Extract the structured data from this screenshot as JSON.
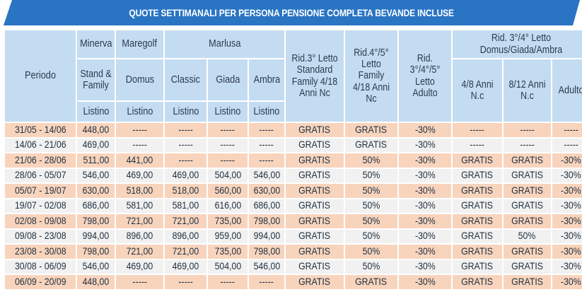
{
  "title": "QUOTE SETTIMANALI PER PERSONA PENSIONE COMPLETA BEVANDE INCLUSE",
  "header": {
    "periodo": "Periodo",
    "minerva": "Minerva",
    "maregolf": "Maregolf",
    "marlusa": "Marlusa",
    "rid3_standard": "Rid.3° Letto Standard Family 4/18 Anni Nc",
    "rid45_family": "Rid.4°/5° Letto Family 4/18 Anni Nc",
    "rid345_adulto": "Rid. 3°/4°/5° Letto Adulto",
    "rid34_domus": "Rid. 3°/4° Letto Domus/Giada/Ambra",
    "standard_family": "Stand & Family",
    "domus": "Domus",
    "classic": "Classic",
    "giada": "Giada",
    "ambra": "Ambra",
    "anni_4_8": "4/8 Anni N.c",
    "anni_8_12": "8/12 Anni N.c",
    "adulto": "Adulto",
    "listino": "Listino"
  },
  "rows": [
    [
      "31/05 - 14/06",
      "448,00",
      "-----",
      "-----",
      "-----",
      "-----",
      "GRATIS",
      "GRATIS",
      "-30%",
      "-----",
      "-----",
      "-----"
    ],
    [
      "14/06 - 21/06",
      "469,00",
      "-----",
      "-----",
      "-----",
      "-----",
      "GRATIS",
      "GRATIS",
      "-30%",
      "-----",
      "-----",
      "-----"
    ],
    [
      "21/06 - 28/06",
      "511,00",
      "441,00",
      "-----",
      "-----",
      "-----",
      "GRATIS",
      "50%",
      "-30%",
      "GRATIS",
      "GRATIS",
      "-30%"
    ],
    [
      "28/06 - 05/07",
      "546,00",
      "469,00",
      "469,00",
      "504,00",
      "546,00",
      "GRATIS",
      "50%",
      "-30%",
      "GRATIS",
      "GRATIS",
      "-30%"
    ],
    [
      "05/07 - 19/07",
      "630,00",
      "518,00",
      "518,00",
      "560,00",
      "630,00",
      "GRATIS",
      "50%",
      "-30%",
      "GRATIS",
      "GRATIS",
      "-30%"
    ],
    [
      "19/07 - 02/08",
      "686,00",
      "581,00",
      "581,00",
      "616,00",
      "686,00",
      "GRATIS",
      "50%",
      "-30%",
      "GRATIS",
      "GRATIS",
      "-30%"
    ],
    [
      "02/08 - 09/08",
      "798,00",
      "721,00",
      "721,00",
      "735,00",
      "798,00",
      "GRATIS",
      "50%",
      "-30%",
      "GRATIS",
      "GRATIS",
      "-30%"
    ],
    [
      "09/08 - 23/08",
      "994,00",
      "896,00",
      "896,00",
      "959,00",
      "994,00",
      "GRATIS",
      "50%",
      "-30%",
      "GRATIS",
      "50%",
      "-30%"
    ],
    [
      "23/08 - 30/08",
      "798,00",
      "721,00",
      "721,00",
      "735,00",
      "798,00",
      "GRATIS",
      "50%",
      "-30%",
      "GRATIS",
      "GRATIS",
      "-30%"
    ],
    [
      "30/08 - 06/09",
      "546,00",
      "469,00",
      "469,00",
      "504,00",
      "546,00",
      "GRATIS",
      "50%",
      "-30%",
      "GRATIS",
      "GRATIS",
      "-30%"
    ],
    [
      "06/09 - 20/09",
      "448,00",
      "-----",
      "-----",
      "-----",
      "-----",
      "GRATIS",
      "GRATIS",
      "-30%",
      "GRATIS",
      "GRATIS",
      "-30%"
    ]
  ]
}
